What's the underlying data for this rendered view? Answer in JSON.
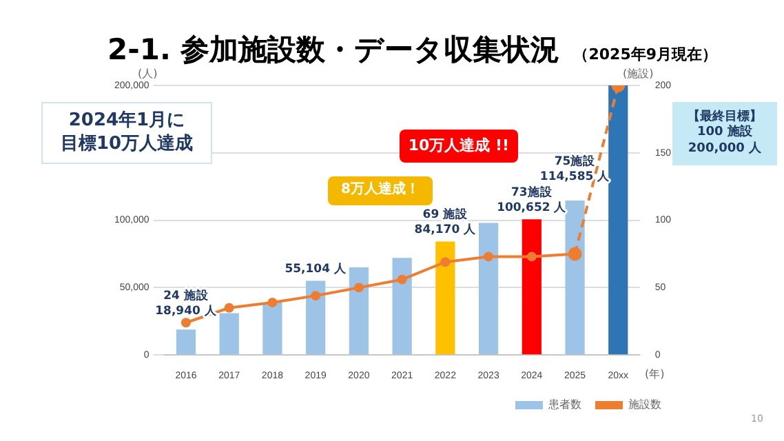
{
  "chart_data": {
    "type": "bar",
    "title": "2-1. 参加施設数・データ収集状況",
    "subtitle": "（2025年9月現在）",
    "xlabel": "(年)",
    "ylabel": "(人)",
    "y2label": "(施設)",
    "categories": [
      "2016",
      "2017",
      "2018",
      "2019",
      "2020",
      "2021",
      "2022",
      "2023",
      "2024",
      "2025",
      "20xx"
    ],
    "series": [
      {
        "name": "患者数",
        "colors": [
          "#9dc3e6",
          "#9dc3e6",
          "#9dc3e6",
          "#9dc3e6",
          "#9dc3e6",
          "#9dc3e6",
          "#ffc000",
          "#9dc3e6",
          "#ff0000",
          "#9dc3e6",
          "#2e75b6"
        ],
        "color": "#9dc3e6",
        "values": [
          18940,
          31000,
          39000,
          55104,
          65000,
          72000,
          84170,
          98000,
          100652,
          114585,
          200000
        ],
        "value_labels": [
          "24 施設\n18,940 人",
          null,
          null,
          "55,104 人",
          null,
          null,
          "69 施設\n84,170 人",
          null,
          "73施設\n100,652 人",
          "75施設\n114,585 人",
          null
        ]
      },
      {
        "name": "施設数",
        "type": "line",
        "axis": "y2",
        "color": "#ed7d31",
        "marker": "circle",
        "line_style": "solid",
        "values": [
          24,
          35,
          39,
          44,
          50,
          56,
          69,
          73,
          73,
          75,
          null
        ]
      },
      {
        "type": "line",
        "axis": "y2",
        "color": "#ed7d31",
        "marker": "circle",
        "line_style": "dashed",
        "values": [
          null,
          null,
          null,
          null,
          null,
          null,
          null,
          null,
          null,
          75,
          200
        ]
      }
    ],
    "ylim": [
      0,
      200000
    ],
    "yticks": [
      {
        "value": 0,
        "label": "0"
      },
      {
        "value": 50000,
        "label": "50,000"
      },
      {
        "value": 100000,
        "label": "100,000"
      },
      {
        "value": 150000,
        "label": null
      },
      {
        "value": 200000,
        "label": "200,000"
      }
    ],
    "y2lim": [
      0,
      200
    ],
    "y2ticks": [
      0,
      50,
      100,
      150,
      200
    ],
    "grid": "y",
    "legend": "bottom",
    "annotations": [
      "2024年1月に",
      "目標10万人達成",
      "8万人達成！",
      "10万人達成 !!",
      "【最終目標】\n100 施設\n200,000 人",
      "10"
    ]
  }
}
